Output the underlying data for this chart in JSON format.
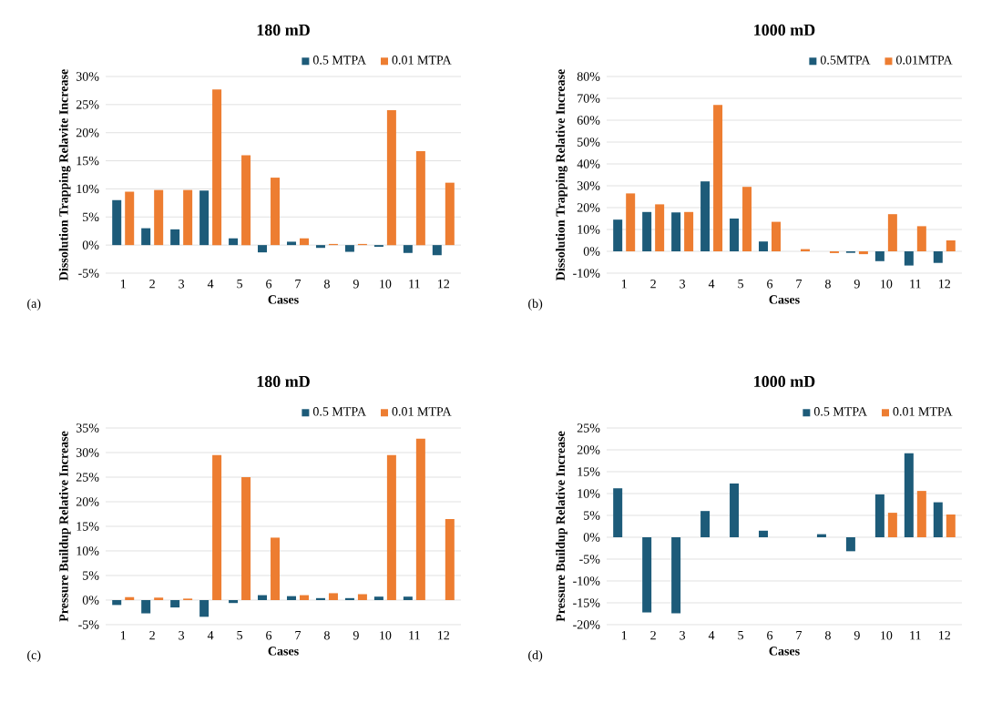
{
  "chart_data": [
    {
      "type": "bar",
      "title": "180 mD",
      "xlabel": "Cases",
      "ylabel": "Dissolution Trapping Relavite Increase",
      "categories": [
        "1",
        "2",
        "3",
        "4",
        "5",
        "6",
        "7",
        "8",
        "9",
        "10",
        "11",
        "12"
      ],
      "series": [
        {
          "name": "0.5 MTPA",
          "color": "#1d5b79",
          "values": [
            8,
            3,
            2.8,
            9.7,
            1.2,
            -1.3,
            0.6,
            -0.5,
            -1.2,
            -0.3,
            -1.4,
            -1.8
          ]
        },
        {
          "name": "0.01 MTPA",
          "color": "#ed7d31",
          "values": [
            9.5,
            9.8,
            9.8,
            27.7,
            16,
            12,
            1.2,
            0.2,
            0.2,
            24,
            16.7,
            11.1
          ]
        }
      ],
      "ylim": [
        -5,
        30
      ],
      "yticks": [
        {
          "value": -5,
          "label": "-5%"
        },
        {
          "value": 0,
          "label": "0%"
        },
        {
          "value": 5,
          "label": "5%"
        },
        {
          "value": 10,
          "label": "10%"
        },
        {
          "value": 15,
          "label": "15%"
        },
        {
          "value": 20,
          "label": "20%"
        },
        {
          "value": 25,
          "label": "25%"
        },
        {
          "value": 30,
          "label": "30%"
        }
      ],
      "grid": "y",
      "legend": "top right",
      "annotations": [
        "(a)"
      ]
    },
    {
      "type": "bar",
      "title": "1000 mD",
      "xlabel": "Cases",
      "ylabel": "Dissolution Trapping Relative Increase",
      "categories": [
        "1",
        "2",
        "3",
        "4",
        "5",
        "6",
        "7",
        "8",
        "9",
        "10",
        "11",
        "12"
      ],
      "series": [
        {
          "name": "0.5MTPA",
          "color": "#1d5b79",
          "values": [
            14.5,
            18,
            17.8,
            32,
            15,
            4.5,
            0,
            0,
            -0.7,
            -4.5,
            -6.5,
            -5.3
          ]
        },
        {
          "name": "0.01MTPA",
          "color": "#ed7d31",
          "values": [
            26.5,
            21.5,
            18,
            67,
            29.5,
            13.5,
            1,
            -0.8,
            -1.3,
            17,
            11.5,
            5
          ]
        }
      ],
      "ylim": [
        -10,
        80
      ],
      "yticks": [
        {
          "value": -10,
          "label": "-10%"
        },
        {
          "value": 0,
          "label": "0%"
        },
        {
          "value": 10,
          "label": "10%"
        },
        {
          "value": 20,
          "label": "20%"
        },
        {
          "value": 30,
          "label": "30%"
        },
        {
          "value": 40,
          "label": "40%"
        },
        {
          "value": 50,
          "label": "50%"
        },
        {
          "value": 60,
          "label": "60%"
        },
        {
          "value": 70,
          "label": "70%"
        },
        {
          "value": 80,
          "label": "80%"
        }
      ],
      "grid": "y",
      "legend": "top right",
      "annotations": [
        "(b)"
      ]
    },
    {
      "type": "bar",
      "title": "180 mD",
      "xlabel": "Cases",
      "ylabel": "Pressure Buildup Relative Increase",
      "categories": [
        "1",
        "2",
        "3",
        "4",
        "5",
        "6",
        "7",
        "8",
        "9",
        "10",
        "11",
        "12"
      ],
      "series": [
        {
          "name": "0.5 MTPA",
          "color": "#1d5b79",
          "values": [
            -1,
            -2.7,
            -1.5,
            -3.4,
            -0.6,
            1,
            0.8,
            0.4,
            0.4,
            0.7,
            0.7,
            0
          ]
        },
        {
          "name": "0.01 MTPA",
          "color": "#ed7d31",
          "values": [
            0.6,
            0.5,
            0.3,
            29.5,
            25,
            12.7,
            1,
            1.4,
            1.2,
            29.5,
            32.8,
            16.5
          ]
        }
      ],
      "ylim": [
        -5,
        35
      ],
      "yticks": [
        {
          "value": -5,
          "label": "-5%"
        },
        {
          "value": 0,
          "label": "0%"
        },
        {
          "value": 5,
          "label": "5%"
        },
        {
          "value": 10,
          "label": "10%"
        },
        {
          "value": 15,
          "label": "15%"
        },
        {
          "value": 20,
          "label": "20%"
        },
        {
          "value": 25,
          "label": "25%"
        },
        {
          "value": 30,
          "label": "30%"
        },
        {
          "value": 35,
          "label": "35%"
        }
      ],
      "grid": "y",
      "legend": "top right",
      "annotations": [
        "(c)"
      ]
    },
    {
      "type": "bar",
      "title": "1000 mD",
      "xlabel": "Cases",
      "ylabel": "Pressure Buildup Relative Increase",
      "categories": [
        "1",
        "2",
        "3",
        "4",
        "5",
        "6",
        "7",
        "8",
        "9",
        "10",
        "11",
        "12"
      ],
      "series": [
        {
          "name": "0.5 MTPA",
          "color": "#1d5b79",
          "values": [
            11.2,
            -17.2,
            -17.4,
            6,
            12.3,
            1.5,
            0,
            0.7,
            -3.2,
            9.8,
            19.2,
            8
          ]
        },
        {
          "name": "0.01 MTPA",
          "color": "#ed7d31",
          "values": [
            0,
            0,
            0,
            0,
            0,
            0,
            0,
            0,
            0,
            5.6,
            10.6,
            5.2
          ]
        }
      ],
      "ylim": [
        -20,
        25
      ],
      "yticks": [
        {
          "value": -20,
          "label": "-20%"
        },
        {
          "value": -15,
          "label": "-15%"
        },
        {
          "value": -10,
          "label": "-10%"
        },
        {
          "value": -5,
          "label": "-5%"
        },
        {
          "value": 0,
          "label": "0%"
        },
        {
          "value": 5,
          "label": "5%"
        },
        {
          "value": 10,
          "label": "10%"
        },
        {
          "value": 15,
          "label": "15%"
        },
        {
          "value": 20,
          "label": "20%"
        },
        {
          "value": 25,
          "label": "25%"
        }
      ],
      "grid": "y",
      "legend": "top right",
      "annotations": [
        "(d)"
      ]
    }
  ]
}
